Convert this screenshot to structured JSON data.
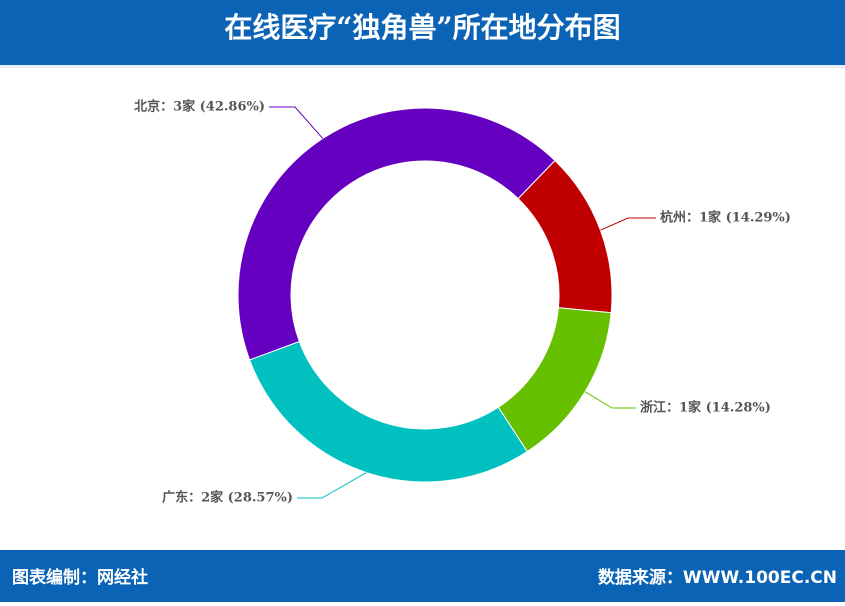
{
  "chart_data": {
    "type": "donut",
    "title": "在线医疗“独角兽”所在地分布图",
    "values": [
      14.29,
      14.28,
      28.57,
      42.86
    ],
    "value_labels": [
      "杭州：1家 (14.29%)",
      "浙江：1家 (14.28%)",
      "广东：2家 (28.57%)",
      "北京：3家 (42.86%)"
    ],
    "colors": [
      "#c00000",
      "#66c000",
      "#00c0c0",
      "#6600c0"
    ]
  },
  "footer": {
    "left": "图表编制：网经社",
    "right": "数据来源：WWW.100EC.CN"
  }
}
